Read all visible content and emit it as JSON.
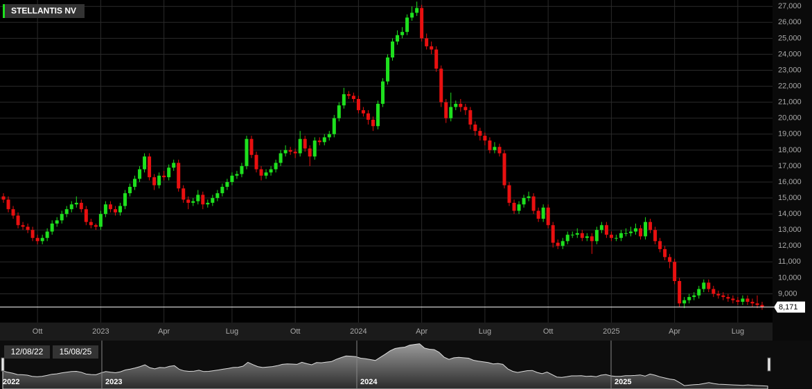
{
  "chart_data": {
    "type": "candlestick",
    "title": "STELLANTIS NV",
    "up_color": "#1ee01e",
    "down_color": "#e81010",
    "grid": true,
    "ylim": [
      7200,
      27400
    ],
    "yticks": [
      {
        "value": 9000,
        "label": "9,000"
      },
      {
        "value": 10000,
        "label": "10,000"
      },
      {
        "value": 11000,
        "label": "11,000"
      },
      {
        "value": 12000,
        "label": "12,000"
      },
      {
        "value": 13000,
        "label": "13,000"
      },
      {
        "value": 14000,
        "label": "14,000"
      },
      {
        "value": 15000,
        "label": "15,000"
      },
      {
        "value": 16000,
        "label": "16,000"
      },
      {
        "value": 17000,
        "label": "17,000"
      },
      {
        "value": 18000,
        "label": "18,000"
      },
      {
        "value": 19000,
        "label": "19,000"
      },
      {
        "value": 20000,
        "label": "20,000"
      },
      {
        "value": 21000,
        "label": "21,000"
      },
      {
        "value": 22000,
        "label": "22,000"
      },
      {
        "value": 23000,
        "label": "23,000"
      },
      {
        "value": 24000,
        "label": "24,000"
      },
      {
        "value": 25000,
        "label": "25,000"
      },
      {
        "value": 26000,
        "label": "26,000"
      },
      {
        "value": 27000,
        "label": "27,000"
      }
    ],
    "last_price": {
      "value": 8171,
      "label": "8,171"
    },
    "categories": [
      null,
      null,
      null,
      null,
      null,
      null,
      null,
      "Ott",
      null,
      null,
      null,
      null,
      null,
      null,
      null,
      null,
      null,
      null,
      null,
      null,
      "2023",
      null,
      null,
      null,
      null,
      null,
      null,
      null,
      null,
      null,
      null,
      null,
      null,
      "Apr",
      null,
      null,
      null,
      null,
      null,
      null,
      null,
      null,
      null,
      null,
      null,
      null,
      null,
      "Lug",
      null,
      null,
      null,
      null,
      null,
      null,
      null,
      null,
      null,
      null,
      null,
      null,
      "Ott",
      null,
      null,
      null,
      null,
      null,
      null,
      null,
      null,
      null,
      null,
      null,
      null,
      "2024",
      null,
      null,
      null,
      null,
      null,
      null,
      null,
      null,
      null,
      null,
      null,
      null,
      "Apr",
      null,
      null,
      null,
      null,
      null,
      null,
      null,
      null,
      null,
      null,
      null,
      null,
      "Lug",
      null,
      null,
      null,
      null,
      null,
      null,
      null,
      null,
      null,
      null,
      null,
      null,
      "Ott",
      null,
      null,
      null,
      null,
      null,
      null,
      null,
      null,
      null,
      null,
      null,
      null,
      "2025",
      null,
      null,
      null,
      null,
      null,
      null,
      null,
      null,
      null,
      null,
      null,
      null,
      "Apr",
      null,
      null,
      null,
      null,
      null,
      null,
      null,
      null,
      null,
      null,
      null,
      null,
      "Lug",
      null,
      null,
      null,
      null,
      null
    ],
    "open": [
      15100,
      14900,
      14300,
      13900,
      13300,
      13200,
      13000,
      12500,
      12300,
      12500,
      12900,
      13400,
      13600,
      14000,
      14300,
      14600,
      14700,
      14300,
      13500,
      13300,
      13200,
      14000,
      14600,
      14300,
      14100,
      14500,
      15300,
      15700,
      16200,
      16800,
      17600,
      16300,
      15800,
      16400,
      16300,
      16900,
      17200,
      15600,
      14900,
      14700,
      14800,
      15200,
      14600,
      14700,
      15000,
      15300,
      15700,
      16000,
      16400,
      16500,
      17000,
      18700,
      17700,
      16800,
      16400,
      16600,
      16800,
      17200,
      17800,
      18000,
      17900,
      17800,
      18700,
      18100,
      17600,
      18600,
      18500,
      18800,
      19000,
      20000,
      20800,
      21500,
      21400,
      21200,
      20500,
      20300,
      19900,
      19500,
      20900,
      22300,
      23800,
      24800,
      25200,
      25400,
      26300,
      26600,
      26900,
      25000,
      24500,
      24300,
      23100,
      21000,
      20000,
      20700,
      20900,
      20700,
      20500,
      19600,
      19200,
      18900,
      18600,
      18000,
      18200,
      17800,
      15800,
      14700,
      14200,
      14600,
      15000,
      15100,
      14200,
      13700,
      14400,
      13300,
      12200,
      12000,
      12300,
      12700,
      12700,
      12800,
      12500,
      12600,
      12300,
      13000,
      13300,
      12700,
      12500,
      12500,
      12800,
      12800,
      12900,
      13100,
      12600,
      13500,
      13000,
      12300,
      11800,
      11300,
      11000,
      9800,
      8400,
      8600,
      8800,
      8900,
      9300,
      9700,
      9300,
      9000,
      8900,
      8800,
      8700,
      8600,
      8500,
      8700,
      8500,
      8400,
      8300
    ],
    "high": [
      15300,
      15100,
      14500,
      14100,
      13500,
      13400,
      13200,
      12700,
      12700,
      13100,
      13600,
      13800,
      14200,
      14500,
      14800,
      15100,
      14900,
      14500,
      13700,
      13400,
      14200,
      14800,
      14800,
      14500,
      14700,
      15500,
      15900,
      16400,
      17000,
      17800,
      17800,
      16500,
      16600,
      16700,
      17100,
      17400,
      17400,
      15800,
      15100,
      15000,
      15500,
      15400,
      14900,
      15200,
      15500,
      15900,
      16200,
      16600,
      16700,
      17200,
      18900,
      18900,
      17900,
      17000,
      16800,
      17000,
      17400,
      18000,
      18300,
      18200,
      18100,
      19200,
      18900,
      18300,
      18800,
      18800,
      19000,
      19200,
      20200,
      21000,
      21900,
      21700,
      21600,
      21400,
      20700,
      20500,
      20100,
      21100,
      22500,
      24000,
      25000,
      25500,
      25700,
      26500,
      27000,
      27300,
      27100,
      25300,
      24800,
      24500,
      23300,
      21200,
      21600,
      21100,
      21200,
      20900,
      20700,
      19800,
      19400,
      19100,
      18800,
      18500,
      18400,
      18000,
      16000,
      14900,
      14800,
      15200,
      15400,
      15300,
      14400,
      14600,
      14600,
      13500,
      12400,
      12500,
      12900,
      12900,
      13100,
      13000,
      12800,
      12800,
      13200,
      13500,
      13500,
      12900,
      12700,
      13000,
      13100,
      13200,
      13400,
      13300,
      13800,
      13700,
      13200,
      12500,
      12000,
      11500,
      11200,
      10000,
      8800,
      9000,
      9100,
      9500,
      9900,
      9900,
      9500,
      9200,
      9100,
      9000,
      8900,
      8800,
      8900,
      8900,
      8700,
      8900,
      8500
    ],
    "low": [
      14700,
      14100,
      13700,
      13100,
      13000,
      12800,
      12300,
      12100,
      12100,
      12300,
      12700,
      13200,
      13400,
      13800,
      14100,
      14400,
      14100,
      13300,
      13100,
      13000,
      13000,
      13800,
      14100,
      13900,
      13900,
      14300,
      15100,
      15500,
      16000,
      16600,
      16100,
      15500,
      15600,
      16100,
      16100,
      16700,
      15400,
      14700,
      14300,
      14500,
      14600,
      14300,
      14400,
      14500,
      14800,
      15100,
      15500,
      15800,
      16200,
      16300,
      16800,
      17500,
      16600,
      16100,
      16200,
      16400,
      16600,
      17000,
      17600,
      17700,
      17500,
      17600,
      17900,
      17000,
      17400,
      18300,
      18300,
      18600,
      18800,
      19800,
      20600,
      21200,
      21000,
      20300,
      20100,
      19600,
      19200,
      19300,
      20700,
      22100,
      23600,
      24600,
      25000,
      25200,
      26100,
      26400,
      24800,
      24300,
      24000,
      22900,
      20700,
      19700,
      19800,
      20500,
      20400,
      20200,
      19300,
      18900,
      18600,
      18300,
      17800,
      17800,
      17600,
      15600,
      14500,
      14000,
      14000,
      14400,
      14800,
      14000,
      13500,
      13500,
      13100,
      11900,
      11800,
      11800,
      12100,
      12500,
      12500,
      12300,
      12300,
      11500,
      12100,
      12800,
      12500,
      12300,
      12300,
      12300,
      12600,
      12600,
      12700,
      12400,
      12400,
      12800,
      12100,
      11600,
      11100,
      10600,
      9600,
      8200,
      8100,
      8400,
      8600,
      8700,
      9100,
      9100,
      8800,
      8700,
      8600,
      8500,
      8400,
      8300,
      8300,
      8300,
      8200,
      8100,
      8000
    ],
    "close": [
      14900,
      14300,
      13900,
      13300,
      13200,
      13000,
      12500,
      12300,
      12500,
      12900,
      13400,
      13600,
      14000,
      14300,
      14600,
      14700,
      14300,
      13500,
      13300,
      13200,
      14000,
      14600,
      14300,
      14100,
      14500,
      15300,
      15700,
      16200,
      16800,
      17600,
      16300,
      15800,
      16400,
      16300,
      16900,
      17200,
      15600,
      14900,
      14700,
      14800,
      15200,
      14600,
      14700,
      15000,
      15300,
      15700,
      16000,
      16400,
      16500,
      17000,
      18700,
      17700,
      16800,
      16400,
      16600,
      16800,
      17200,
      17800,
      18000,
      17900,
      17800,
      18700,
      18100,
      17600,
      18600,
      18500,
      18800,
      19000,
      20000,
      20800,
      21500,
      21400,
      21200,
      20500,
      20300,
      19900,
      19500,
      20900,
      22300,
      23800,
      24800,
      25200,
      25400,
      26300,
      26600,
      26900,
      25000,
      24500,
      24300,
      23100,
      21000,
      20000,
      20700,
      20900,
      20700,
      20500,
      19600,
      19200,
      18900,
      18600,
      18000,
      18200,
      17800,
      15800,
      14700,
      14200,
      14600,
      15000,
      15100,
      14200,
      13700,
      14400,
      13300,
      12200,
      12000,
      12300,
      12700,
      12700,
      12800,
      12500,
      12600,
      12300,
      13000,
      13300,
      12700,
      12500,
      12500,
      12800,
      12800,
      12900,
      13100,
      12600,
      13500,
      13000,
      12300,
      11800,
      11300,
      11000,
      9800,
      8400,
      8600,
      8800,
      8900,
      9300,
      9700,
      9300,
      9000,
      8900,
      8800,
      8700,
      8600,
      8500,
      8700,
      8500,
      8400,
      8300,
      8171
    ],
    "navigator": {
      "range_labels": [
        "12/08/22",
        "15/08/25"
      ],
      "years": [
        "2022",
        "2023",
        "2024",
        "2025"
      ]
    }
  }
}
